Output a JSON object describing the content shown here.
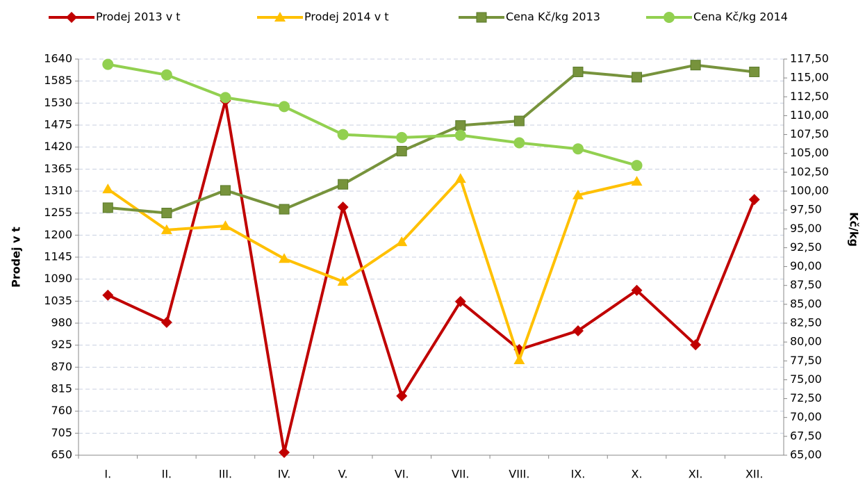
{
  "chart_data": {
    "type": "line",
    "categories": [
      "I.",
      "II.",
      "III.",
      "IV.",
      "V.",
      "VI.",
      "VII.",
      "VIII.",
      "IX.",
      "X.",
      "XI.",
      "XII."
    ],
    "ylabel": "Prodej v t",
    "y2label": "Kč/kg",
    "ylim": [
      650,
      1640
    ],
    "yticks": [
      650,
      705,
      760,
      815,
      870,
      925,
      980,
      1035,
      1090,
      1145,
      1200,
      1255,
      1310,
      1365,
      1420,
      1475,
      1530,
      1585,
      1640
    ],
    "y2lim": [
      65,
      117.5
    ],
    "y2ticks": [
      {
        "value": 65,
        "label": "65,00"
      },
      {
        "value": 67.5,
        "label": "67,50"
      },
      {
        "value": 70,
        "label": "70,00"
      },
      {
        "value": 72.5,
        "label": "72,50"
      },
      {
        "value": 75,
        "label": "75,00"
      },
      {
        "value": 77.5,
        "label": "77,50"
      },
      {
        "value": 80,
        "label": "80,00"
      },
      {
        "value": 82.5,
        "label": "82,50"
      },
      {
        "value": 85,
        "label": "85,00"
      },
      {
        "value": 87.5,
        "label": "87,50"
      },
      {
        "value": 90,
        "label": "90,00"
      },
      {
        "value": 92.5,
        "label": "92,50"
      },
      {
        "value": 95,
        "label": "95,00"
      },
      {
        "value": 97.5,
        "label": "97,50"
      },
      {
        "value": 100,
        "label": "100,00"
      },
      {
        "value": 102.5,
        "label": "102,50"
      },
      {
        "value": 105,
        "label": "105,00"
      },
      {
        "value": 107.5,
        "label": "107,50"
      },
      {
        "value": 110,
        "label": "110,00"
      },
      {
        "value": 112.5,
        "label": "112,50"
      },
      {
        "value": 115,
        "label": "115,00"
      },
      {
        "value": 117.5,
        "label": "117,50"
      }
    ],
    "grid": true,
    "legend": "top",
    "series": [
      {
        "name": "Prodej 2013 v t",
        "color": "#c00000",
        "marker": "diamond",
        "values": [
          1050,
          982,
          1536,
          657,
          1270,
          798,
          1034,
          914,
          961,
          1062,
          926,
          1289
        ]
      },
      {
        "name": "Prodej 2014 v t",
        "color": "#ffc000",
        "marker": "triangle",
        "values": [
          1315,
          1213,
          1223,
          1141,
          1084,
          1183,
          1341,
          888,
          1300,
          1334,
          null,
          null
        ]
      },
      {
        "name": "Cena Kč/kg 2013",
        "color": "#77933c",
        "marker": "square",
        "axis": "y2",
        "values": [
          97.8,
          97.1,
          100.1,
          97.6,
          100.9,
          105.3,
          108.7,
          109.3,
          115.8,
          115.1,
          116.7,
          115.8
        ]
      },
      {
        "name": "Cena Kč/kg 2014",
        "color": "#92d050",
        "marker": "circle",
        "axis": "y2",
        "values": [
          116.8,
          115.4,
          112.4,
          111.2,
          107.5,
          107.1,
          107.4,
          106.4,
          105.6,
          103.4,
          null,
          null
        ]
      }
    ]
  }
}
